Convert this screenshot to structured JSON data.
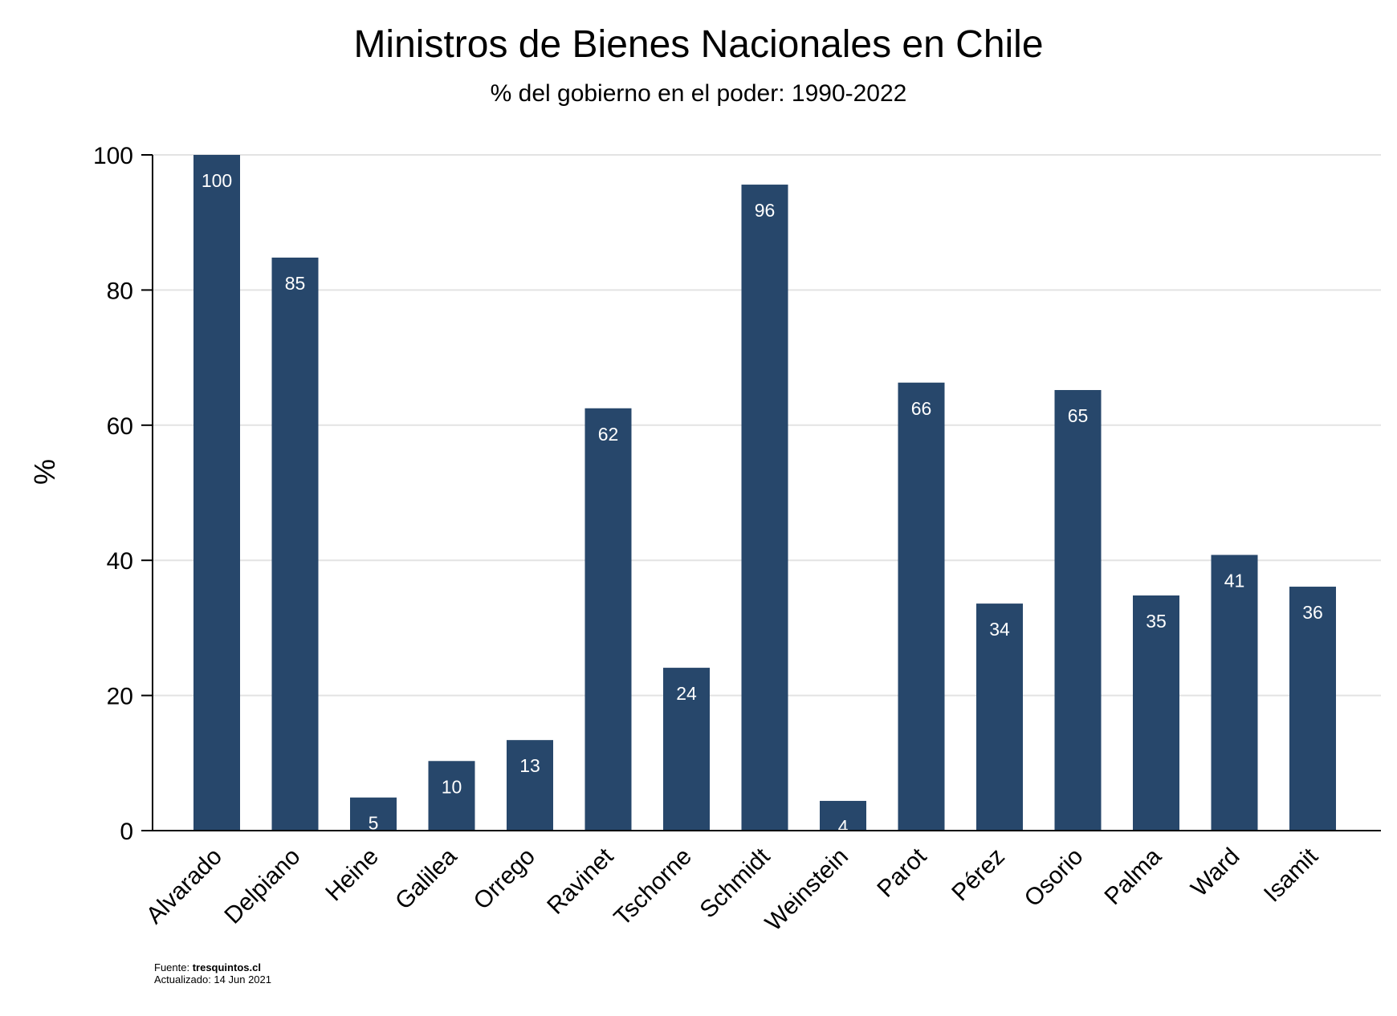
{
  "chart_data": {
    "type": "bar",
    "title": "Ministros de Bienes Nacionales en Chile",
    "subtitle": "% del gobierno en el poder: 1990-2022",
    "ylabel": "%",
    "xlabel": "",
    "ylim": [
      0,
      100
    ],
    "yticks": [
      0,
      20,
      40,
      60,
      80,
      100
    ],
    "grid": true,
    "bar_color": "#27476b",
    "categories": [
      "Alvarado",
      "Delpiano",
      "Heine",
      "Galilea",
      "Orrego",
      "Ravinet",
      "Tschorne",
      "Schmidt",
      "Weinstein",
      "Parot",
      "Pérez",
      "Osorio",
      "Palma",
      "Ward",
      "Isamit"
    ],
    "values": [
      100,
      84.8,
      4.9,
      10.3,
      13.4,
      62.5,
      24.1,
      95.6,
      4.4,
      66.3,
      33.6,
      65.2,
      34.8,
      40.8,
      36.1
    ],
    "labels": [
      "100",
      "85",
      "5",
      "10",
      "13",
      "62",
      "24",
      "96",
      "4",
      "66",
      "34",
      "65",
      "35",
      "41",
      "36"
    ]
  },
  "footer": {
    "source_prefix": "Fuente: ",
    "source_name": "tresquintos.cl",
    "updated": "Actualizado: 14 Jun 2021"
  }
}
